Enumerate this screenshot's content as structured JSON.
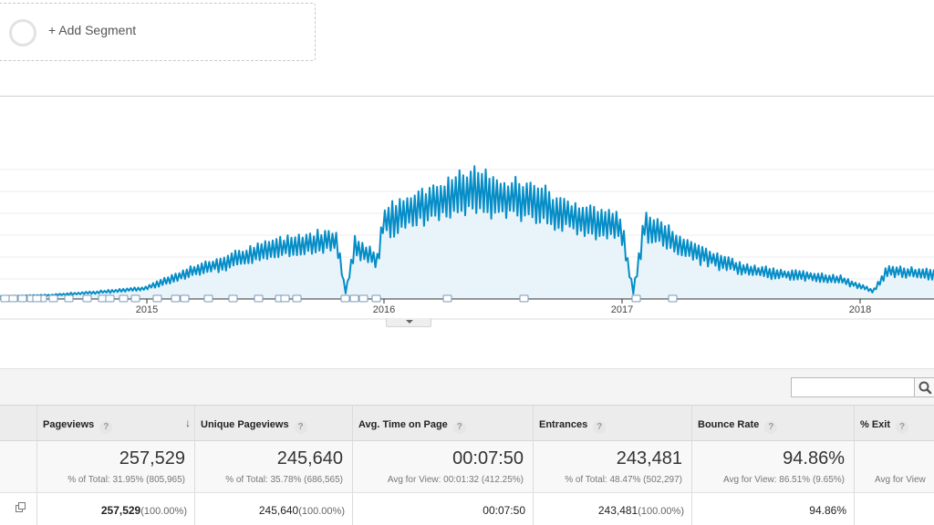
{
  "segment": {
    "add_label": "+ Add Segment"
  },
  "chart_data": {
    "type": "area",
    "x_tick_labels": [
      "2015",
      "2016",
      "2017",
      "2018"
    ],
    "line_color": "#058dc7",
    "fill_color": "#e9f3fa",
    "grid": true,
    "series": [
      {
        "profile": [
          [
            0,
            0.02
          ],
          [
            0.055,
            0.03
          ],
          [
            0.1,
            0.05
          ],
          [
            0.155,
            0.08
          ],
          [
            0.2,
            0.2
          ],
          [
            0.25,
            0.3
          ],
          [
            0.3,
            0.4
          ],
          [
            0.36,
            0.46
          ],
          [
            0.37,
            0.05
          ],
          [
            0.38,
            0.4
          ],
          [
            0.405,
            0.3
          ],
          [
            0.41,
            0.58
          ],
          [
            0.45,
            0.72
          ],
          [
            0.51,
            0.84
          ],
          [
            0.57,
            0.74
          ],
          [
            0.62,
            0.62
          ],
          [
            0.665,
            0.55
          ],
          [
            0.678,
            0.05
          ],
          [
            0.69,
            0.56
          ],
          [
            0.75,
            0.34
          ],
          [
            0.8,
            0.22
          ],
          [
            0.9,
            0.15
          ],
          [
            0.935,
            0.06
          ],
          [
            0.95,
            0.22
          ],
          [
            1.0,
            0.19
          ]
        ]
      }
    ],
    "annotation_markers_count": 30
  },
  "toolbar": {
    "search_placeholder": ""
  },
  "table": {
    "columns": [
      {
        "key": "pageviews",
        "label": "Pageviews",
        "sorted": true
      },
      {
        "key": "unique_pageviews",
        "label": "Unique Pageviews"
      },
      {
        "key": "avg_time",
        "label": "Avg. Time on Page"
      },
      {
        "key": "entrances",
        "label": "Entrances"
      },
      {
        "key": "bounce_rate",
        "label": "Bounce Rate"
      },
      {
        "key": "exit",
        "label": "% Exit"
      }
    ],
    "totals": {
      "pageviews": {
        "value": "257,529",
        "sub": "% of Total: 31.95% (805,965)"
      },
      "unique_pageviews": {
        "value": "245,640",
        "sub": "% of Total: 35.78% (686,565)"
      },
      "avg_time": {
        "value": "00:07:50",
        "sub": "Avg for View: 00:01:32 (412.25%)"
      },
      "entrances": {
        "value": "243,481",
        "sub": "% of Total: 48.47% (502,297)"
      },
      "bounce_rate": {
        "value": "94.86%",
        "sub": "Avg for View: 86.51% (9.65%)"
      },
      "exit": {
        "value": "",
        "sub": "Avg for View"
      }
    },
    "row": {
      "pageviews": {
        "value": "257,529",
        "pct": "(100.00%)"
      },
      "unique_pageviews": {
        "value": "245,640",
        "pct": "(100.00%)"
      },
      "avg_time": {
        "value": "00:07:50"
      },
      "entrances": {
        "value": "243,481",
        "pct": "(100.00%)"
      },
      "bounce_rate": {
        "value": "94.86%"
      }
    }
  }
}
